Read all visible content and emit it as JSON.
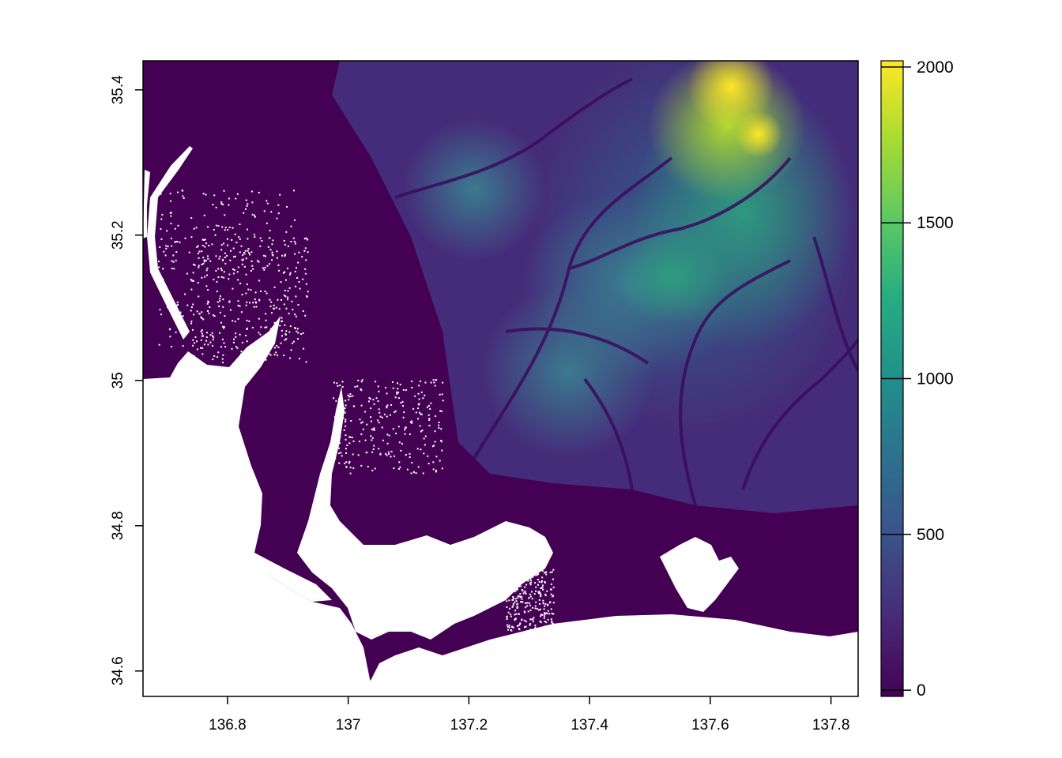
{
  "map": {
    "x_axis": {
      "range": [
        136.66,
        137.845
      ],
      "ticks": [
        136.8,
        137,
        137.2,
        137.4,
        137.6,
        137.8
      ],
      "tick_labels": [
        "136.8",
        "137",
        "137.2",
        "137.4",
        "137.6",
        "137.8"
      ]
    },
    "y_axis": {
      "range": [
        34.565,
        35.44
      ],
      "ticks": [
        34.6,
        34.8,
        35,
        35.2,
        35.4
      ],
      "tick_labels": [
        "34.6",
        "34.8",
        "35",
        "35.2",
        "35.4"
      ]
    },
    "legend": {
      "range": [
        -20,
        2020
      ],
      "ticks": [
        0,
        500,
        1000,
        1500,
        2000
      ],
      "tick_labels": [
        "0",
        "500",
        "1000",
        "1500",
        "2000"
      ],
      "colormap": [
        "#440154",
        "#3b528b",
        "#21908c",
        "#5dc863",
        "#fde725"
      ]
    },
    "colors": {
      "no_data": "#ffffff",
      "lowland": "#440154",
      "highland": "#fde725"
    }
  }
}
